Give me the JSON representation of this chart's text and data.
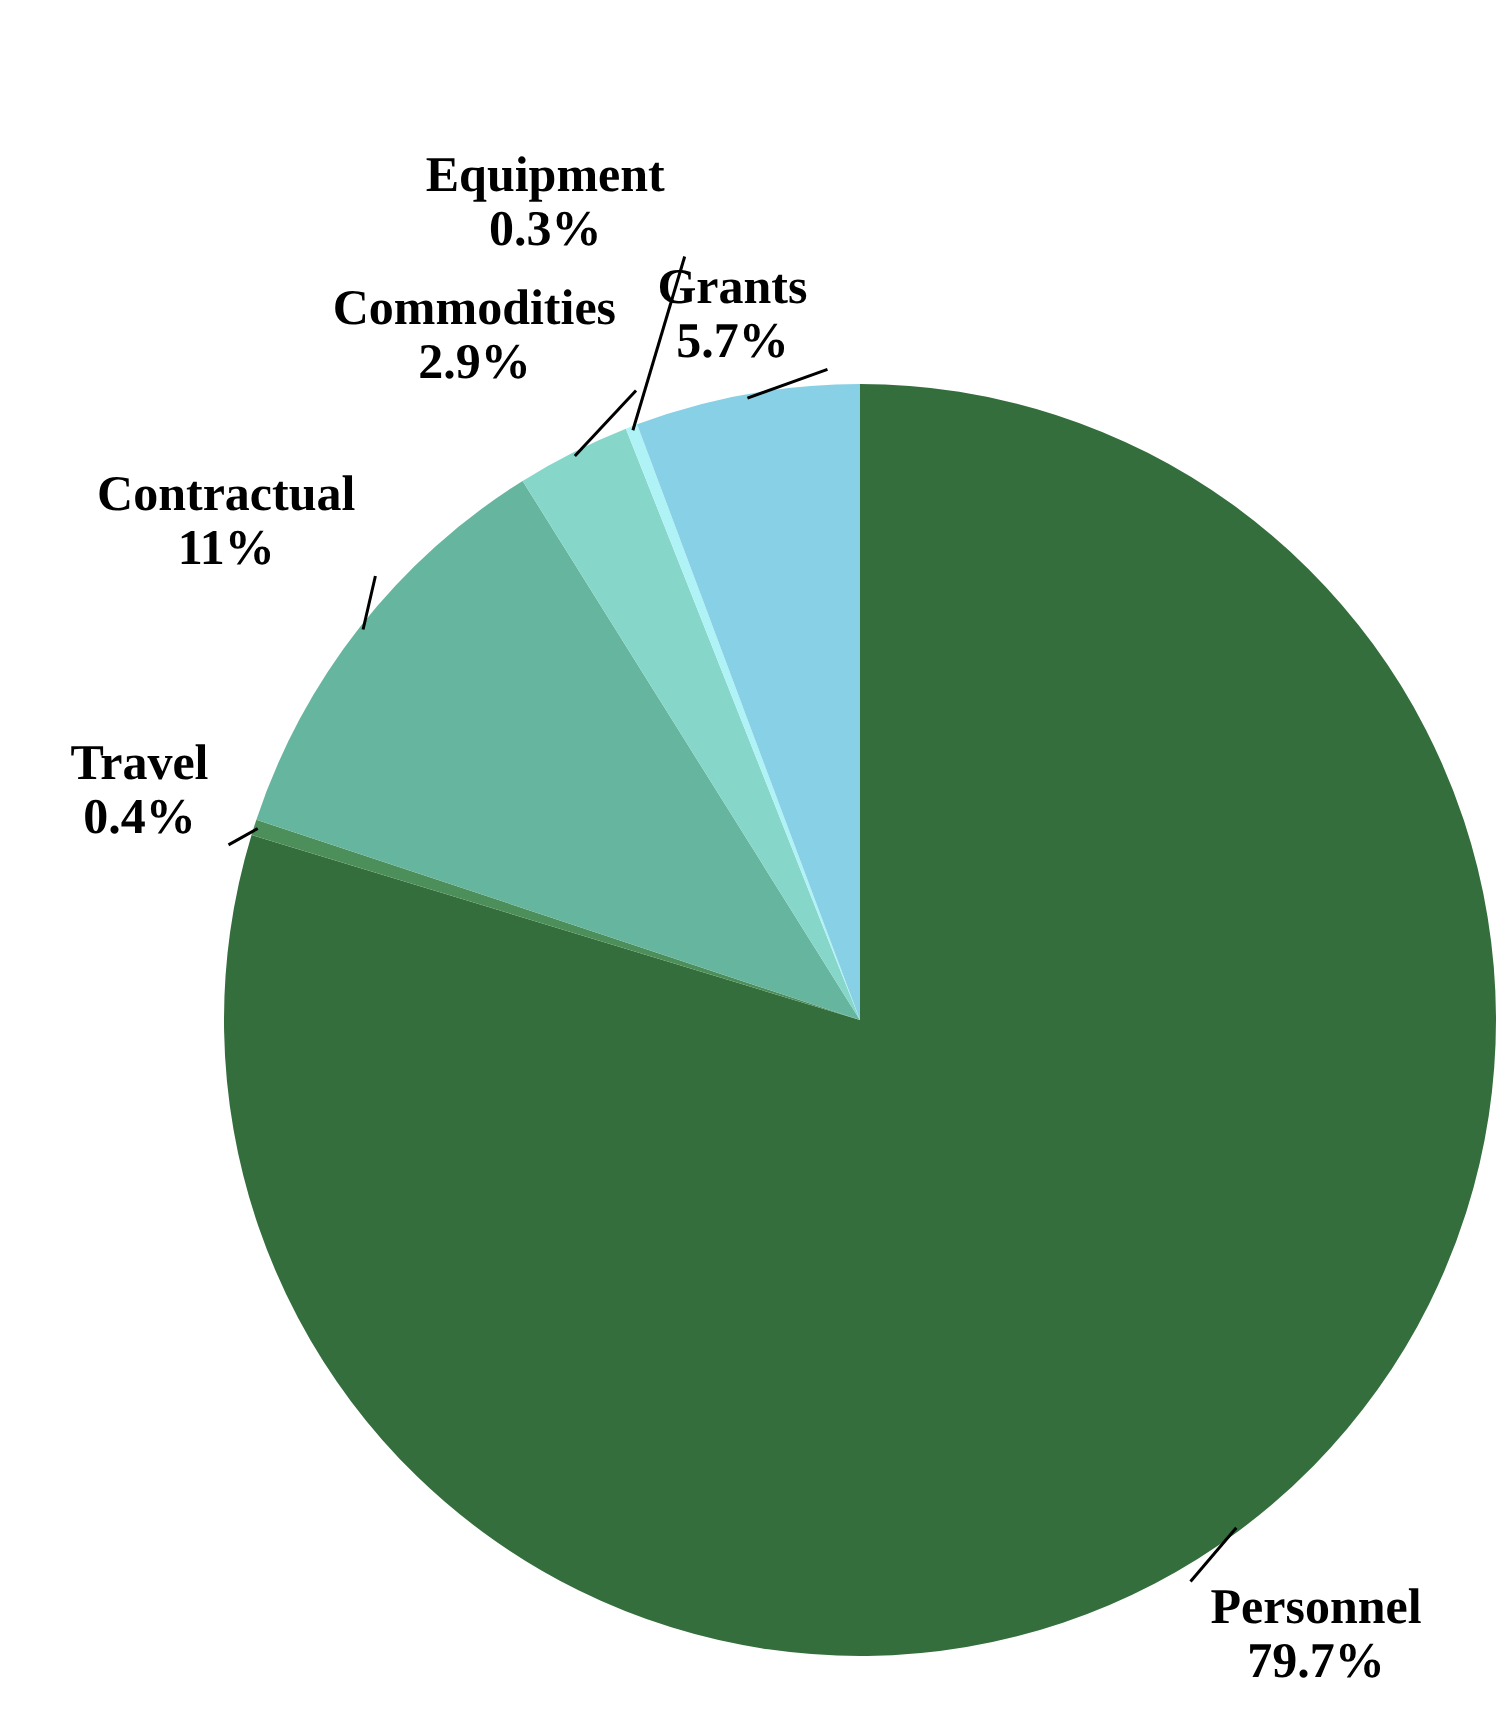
{
  "chart_data": {
    "type": "pie",
    "categories": [
      "Personnel",
      "Travel",
      "Contractual",
      "Commodities",
      "Equipment",
      "Grants"
    ],
    "values": [
      79.7,
      0.4,
      11,
      2.9,
      0.3,
      5.7
    ],
    "value_labels": [
      "79.7%",
      "0.4%",
      "11%",
      "2.9%",
      "0.3%",
      "5.7%"
    ],
    "colors": [
      "#346e3c",
      "#4d8f5b",
      "#66b59e",
      "#86d7c9",
      "#b0f3f6",
      "#88d0e5"
    ]
  }
}
